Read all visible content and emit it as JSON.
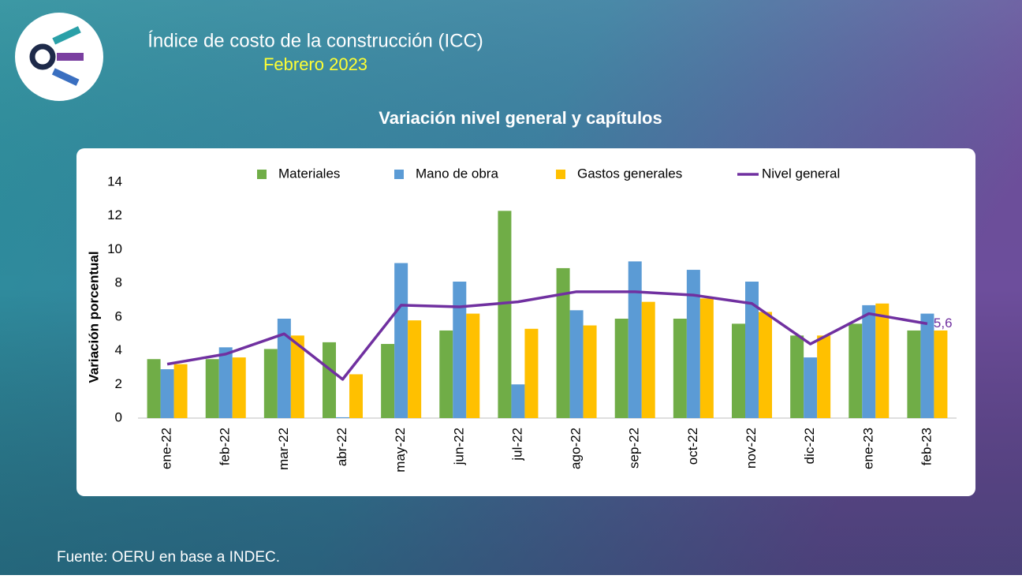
{
  "header": {
    "title": "Índice de costo de la construcción (ICC)",
    "subtitle": "Febrero 2023"
  },
  "footer": "Fuente: OERU en base a INDEC.",
  "chart_data": {
    "type": "bar",
    "title": "Variación nivel general y capítulos",
    "y_label": "Variación porcentual",
    "categories": [
      "ene-22",
      "feb-22",
      "mar-22",
      "abr-22",
      "may-22",
      "jun-22",
      "jul-22",
      "ago-22",
      "sep-22",
      "oct-22",
      "nov-22",
      "dic-22",
      "ene-23",
      "feb-23"
    ],
    "series": [
      {
        "name": "Materiales",
        "color": "#70ad47",
        "values": [
          3.5,
          3.5,
          4.1,
          4.5,
          4.4,
          5.2,
          12.3,
          8.9,
          5.9,
          5.9,
          5.6,
          4.9,
          5.6,
          5.2
        ]
      },
      {
        "name": "Mano de obra",
        "color": "#5b9bd5",
        "values": [
          2.9,
          4.2,
          5.9,
          0.05,
          9.2,
          8.1,
          2.0,
          6.4,
          9.3,
          8.8,
          8.1,
          3.6,
          6.7,
          6.2
        ]
      },
      {
        "name": "Gastos generales",
        "color": "#ffc000",
        "values": [
          3.2,
          3.6,
          4.9,
          2.6,
          5.8,
          6.2,
          5.3,
          5.5,
          6.9,
          7.1,
          6.3,
          4.9,
          6.8,
          5.2
        ]
      },
      {
        "name": "Nivel general",
        "color": "#7030a0",
        "type": "line",
        "values": [
          3.2,
          3.8,
          5.0,
          2.3,
          6.7,
          6.6,
          6.9,
          7.5,
          7.5,
          7.3,
          6.8,
          4.4,
          6.2,
          5.6
        ],
        "value_labels": [
          null,
          null,
          null,
          null,
          null,
          null,
          null,
          null,
          null,
          null,
          null,
          null,
          null,
          "5,6"
        ]
      }
    ],
    "ylim": [
      0,
      14
    ],
    "yticks": [
      0,
      2,
      4,
      6,
      8,
      10,
      12,
      14
    ],
    "grid": false,
    "legend": "top"
  }
}
